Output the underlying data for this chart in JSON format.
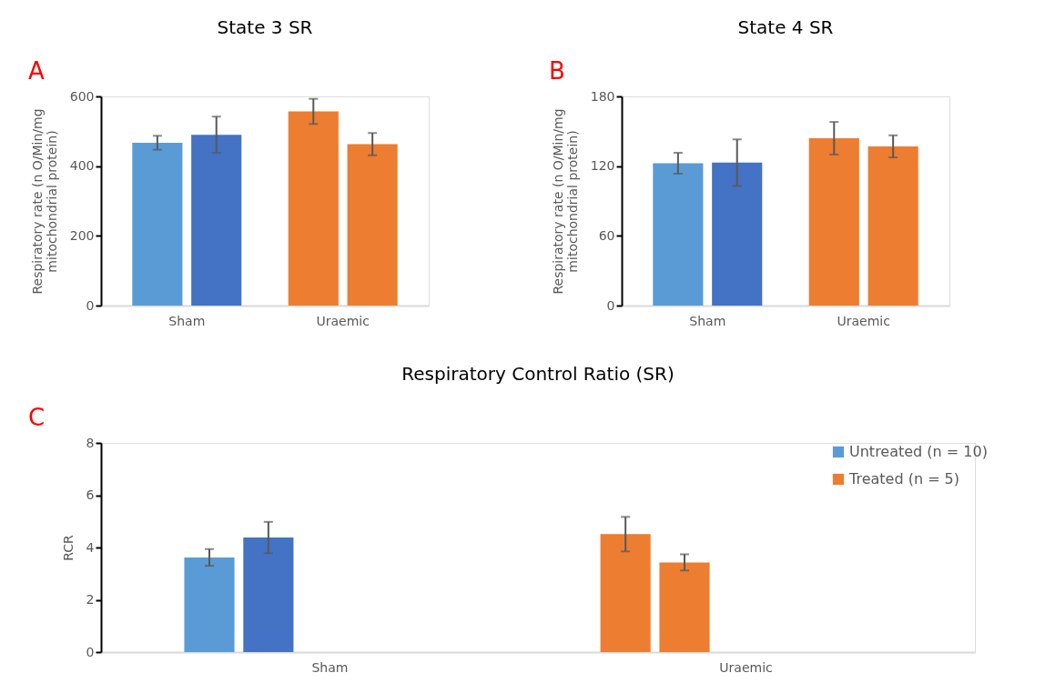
{
  "chart_data": [
    {
      "type": "bar",
      "title": "State 3 SR",
      "annotations": [
        "A"
      ],
      "ylabel": "Respiratory rate (n O/Min/mg mitochondrial protein)",
      "categories": [
        "Sham",
        "Uraemic"
      ],
      "ylim": [
        0,
        600
      ],
      "yticks": [
        0,
        200,
        400,
        600
      ],
      "grid": false,
      "legend": false,
      "series": [
        {
          "colors": [
            "#5b9bd5",
            "#ed7d31"
          ],
          "values": [
            467,
            557
          ],
          "errors": [
            20,
            36
          ]
        },
        {
          "colors": [
            "#4472c4",
            "#ed7d31"
          ],
          "values": [
            490,
            463
          ],
          "errors": [
            52,
            32
          ]
        }
      ]
    },
    {
      "type": "bar",
      "title": "State 4 SR",
      "annotations": [
        "B"
      ],
      "ylabel": "Respiratory rate (n O/Min/mg mitochondrial protein)",
      "categories": [
        "Sham",
        "Uraemic"
      ],
      "ylim": [
        0,
        180
      ],
      "yticks": [
        0,
        60,
        120,
        180
      ],
      "grid": false,
      "legend": false,
      "series": [
        {
          "colors": [
            "#5b9bd5",
            "#ed7d31"
          ],
          "values": [
            122.5,
            144
          ],
          "errors": [
            9,
            14
          ]
        },
        {
          "colors": [
            "#4472c4",
            "#ed7d31"
          ],
          "values": [
            123,
            137
          ],
          "errors": [
            20,
            9.5
          ]
        }
      ]
    },
    {
      "type": "bar",
      "title": "Respiratory Control Ratio (SR)",
      "annotations": [
        "C"
      ],
      "ylabel": "RCR",
      "categories": [
        "Sham",
        "Uraemic"
      ],
      "ylim": [
        0,
        8
      ],
      "yticks": [
        0,
        2,
        4,
        6,
        8
      ],
      "grid": false,
      "legend": "top right",
      "series": [
        {
          "name": "Untreated (n = 10)",
          "color": "#5b9bd5",
          "colors": [
            "#5b9bd5",
            "#ed7d31"
          ],
          "values": [
            3.62,
            4.51
          ],
          "errors": [
            0.32,
            0.66
          ]
        },
        {
          "name": "Treated (n = 5)",
          "color": "#ed7d31",
          "colors": [
            "#4472c4",
            "#ed7d31"
          ],
          "values": [
            4.38,
            3.43
          ],
          "errors": [
            0.6,
            0.31
          ]
        }
      ]
    }
  ]
}
